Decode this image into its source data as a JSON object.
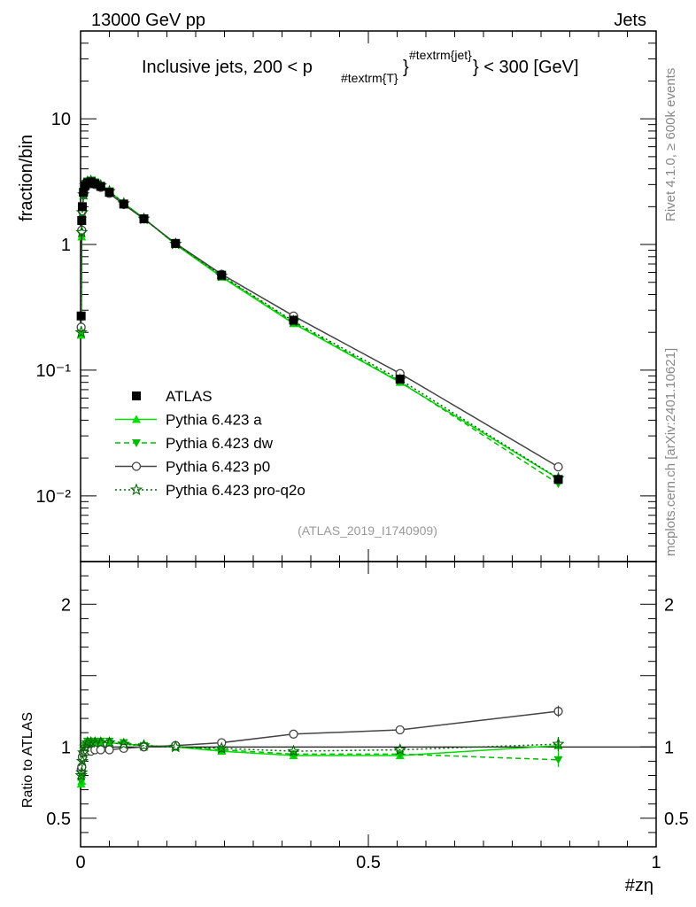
{
  "header": {
    "energy_label": "13000 GeV pp",
    "process_label": "Jets",
    "title_main": "Inclusive jets, 200 < p",
    "title_sub": "#textrm{T}",
    "title_sup": "#textrm{jet}",
    "title_tail": "} < 300 [GeV]",
    "analysis_id": "(ATLAS_2019_I1740909)"
  },
  "side_labels": {
    "rivet": "Rivet 4.1.0, ≥ 600k events",
    "mcplots": "mcplots.cern.ch [arXiv:2401.10621]"
  },
  "axes": {
    "main_ylabel": "fraction/bin",
    "ratio_ylabel": "Ratio to ATLAS",
    "xlabel": "#zη",
    "x_ticks": [
      {
        "v": 0,
        "label": "0"
      },
      {
        "v": 0.5,
        "label": "0.5"
      },
      {
        "v": 1,
        "label": "1"
      }
    ],
    "main_y_ticks": [
      {
        "v": 10,
        "label": "10"
      },
      {
        "v": 1,
        "label": "1"
      },
      {
        "v": 0.1,
        "label": "10⁻¹"
      },
      {
        "v": 0.01,
        "label": "10⁻²"
      }
    ],
    "ratio_y_ticks": [
      {
        "v": 2,
        "label": "2"
      },
      {
        "v": 1,
        "label": "1"
      },
      {
        "v": 0.5,
        "label": "0.5"
      }
    ]
  },
  "legend": [
    {
      "key": "atlas",
      "label": "ATLAS"
    },
    {
      "key": "a",
      "label": "Pythia 6.423 a"
    },
    {
      "key": "dw",
      "label": "Pythia 6.423 dw"
    },
    {
      "key": "p0",
      "label": "Pythia 6.423 p0"
    },
    {
      "key": "pro",
      "label": "Pythia 6.423 pro-q2o"
    }
  ],
  "colors": {
    "atlas": "#000000",
    "a": "#00dd00",
    "dw": "#00bb00",
    "p0": "#444444",
    "pro": "#006600"
  },
  "chart_data": {
    "type": "line",
    "title": "Inclusive jets, 200 < p_T^jet < 300 [GeV]",
    "xlabel": "#zη",
    "ylabel": "fraction/bin",
    "xlim": [
      0,
      1
    ],
    "ylim": [
      0.003,
      50
    ],
    "yscale": "log",
    "ratio_ylim": [
      0.3,
      2.3
    ],
    "x": [
      0.001,
      0.002,
      0.003,
      0.005,
      0.008,
      0.012,
      0.018,
      0.025,
      0.035,
      0.05,
      0.075,
      0.11,
      0.165,
      0.245,
      0.37,
      0.555,
      0.83
    ],
    "series": [
      {
        "key": "atlas",
        "name": "ATLAS",
        "values": [
          0.27,
          1.55,
          2.0,
          2.6,
          2.95,
          3.1,
          3.15,
          3.05,
          2.9,
          2.6,
          2.1,
          1.6,
          1.02,
          0.57,
          0.25,
          0.085,
          0.0135
        ]
      },
      {
        "key": "a",
        "name": "Pythia 6.423 a",
        "values": [
          0.19,
          1.15,
          1.75,
          2.45,
          2.95,
          3.2,
          3.25,
          3.15,
          2.95,
          2.65,
          2.13,
          1.62,
          1.0,
          0.55,
          0.235,
          0.08,
          0.0137
        ]
      },
      {
        "key": "dw",
        "name": "Pythia 6.423 dw",
        "values": [
          0.2,
          1.2,
          1.8,
          2.5,
          3.0,
          3.2,
          3.25,
          3.15,
          2.95,
          2.67,
          2.13,
          1.61,
          1.0,
          0.56,
          0.24,
          0.081,
          0.0125
        ]
      },
      {
        "key": "p0",
        "name": "Pythia 6.423 p0",
        "values": [
          0.22,
          1.3,
          1.85,
          2.5,
          2.85,
          3.0,
          3.05,
          3.0,
          2.85,
          2.55,
          2.08,
          1.6,
          1.02,
          0.58,
          0.27,
          0.094,
          0.017
        ]
      },
      {
        "key": "pro",
        "name": "Pythia 6.423 pro-q2o",
        "values": [
          0.2,
          1.25,
          1.8,
          2.5,
          2.95,
          3.15,
          3.2,
          3.1,
          2.95,
          2.65,
          2.12,
          1.6,
          1.01,
          0.565,
          0.245,
          0.084,
          0.0138
        ]
      }
    ],
    "ratio_series": [
      {
        "key": "a",
        "values": [
          0.74,
          0.76,
          0.88,
          0.95,
          1.0,
          1.03,
          1.04,
          1.04,
          1.03,
          1.03,
          1.02,
          1.01,
          1.0,
          0.97,
          0.94,
          0.94,
          1.01
        ]
      },
      {
        "key": "dw",
        "values": [
          0.76,
          0.8,
          0.9,
          0.97,
          1.01,
          1.04,
          1.04,
          1.04,
          1.04,
          1.04,
          1.03,
          1.01,
          1.0,
          0.98,
          0.95,
          0.95,
          0.91
        ]
      },
      {
        "key": "p0",
        "values": [
          0.84,
          0.86,
          0.93,
          0.96,
          0.97,
          0.97,
          0.97,
          0.98,
          0.98,
          0.98,
          0.99,
          1.0,
          1.01,
          1.03,
          1.09,
          1.12,
          1.25
        ]
      },
      {
        "key": "pro",
        "values": [
          0.8,
          0.82,
          0.9,
          0.96,
          1.0,
          1.03,
          1.03,
          1.03,
          1.03,
          1.03,
          1.02,
          1.01,
          1.0,
          0.99,
          0.97,
          0.98,
          1.02
        ]
      }
    ],
    "ratio_last_errors": {
      "a": 0.05,
      "dw": 0.05,
      "p0": 0.04,
      "pro": 0.05
    }
  }
}
